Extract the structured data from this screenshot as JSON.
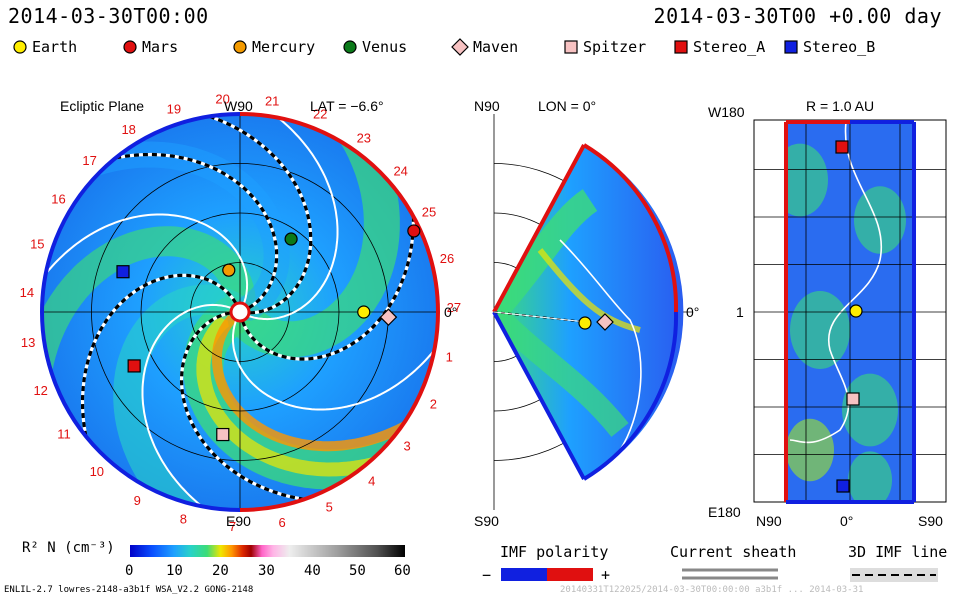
{
  "header": {
    "date_left": "2014-03-30T00:00",
    "date_right": "2014-03-30T00 +0.00 day"
  },
  "legend": [
    {
      "name": "Earth",
      "shape": "circle",
      "color": "#ffee00"
    },
    {
      "name": "Mars",
      "shape": "circle",
      "color": "#e01010"
    },
    {
      "name": "Mercury",
      "shape": "circle",
      "color": "#f39a00"
    },
    {
      "name": "Venus",
      "shape": "circle",
      "color": "#0b7a1a"
    },
    {
      "name": "Maven",
      "shape": "diamond",
      "color": "#f7c2c2"
    },
    {
      "name": "Spitzer",
      "shape": "square",
      "color": "#f7c2c2"
    },
    {
      "name": "Stereo_A",
      "shape": "square",
      "color": "#e01010"
    },
    {
      "name": "Stereo_B",
      "shape": "square",
      "color": "#1020e0"
    }
  ],
  "ecliptic": {
    "title": "Ecliptic Plane",
    "top_label": "W90",
    "bottom_label": "E90",
    "lat_label": "LAT = −6.6°",
    "right_label": "0°",
    "carrington_labels": [
      "1",
      "2",
      "3",
      "4",
      "5",
      "6",
      "7",
      "8",
      "9",
      "10",
      "11",
      "12",
      "13",
      "14",
      "15",
      "16",
      "17",
      "18",
      "19",
      "20",
      "21",
      "22",
      "23",
      "24",
      "25",
      "26",
      "27"
    ]
  },
  "meridional": {
    "top_label": "N90",
    "bottom_label": "S90",
    "lon_label": "LON = 0°",
    "right_label": "0°"
  },
  "radial": {
    "title": "R = 1.0 AU",
    "top_left": "W180",
    "mid_left": "1",
    "bottom_left": "E180",
    "x_labels": [
      "N90",
      "0°",
      "S90"
    ]
  },
  "colorbar": {
    "label": "R² N (cm⁻³)",
    "ticks": [
      "0",
      "10",
      "20",
      "30",
      "40",
      "50",
      "60"
    ]
  },
  "imf": {
    "label": "IMF polarity",
    "minus": "−",
    "plus": "+"
  },
  "sheath": {
    "label": "Current sheath"
  },
  "imf3d": {
    "label": "3D IMF line"
  },
  "footer": {
    "left": "ENLIL-2.7 lowres-2148-a3b1f WSA_V2.2 GONG-2148",
    "right": "20140331T122025/2014-03-30T00:00:00 a3b1f ... 2014-03-31"
  },
  "chart_data": {
    "type": "heatmap",
    "quantity": "R² N (cm⁻³)",
    "scale_range": [
      0,
      60
    ],
    "colormap": [
      "#0000c8",
      "#0a4fff",
      "#1ea0ff",
      "#28d2c8",
      "#3cdc78",
      "#a0e628",
      "#f0e600",
      "#ff9600",
      "#dc2800",
      "#a00000",
      "#ff64c8",
      "#ffb4e6",
      "#dcdcdc",
      "#a0a0a0",
      "#646464",
      "#282828",
      "#000000"
    ],
    "bodies": [
      {
        "name": "Earth",
        "r_au": 1.0,
        "lon_deg": 0
      },
      {
        "name": "Mars",
        "r_au": 1.55,
        "lon_deg": 25
      },
      {
        "name": "Mercury",
        "r_au": 0.35,
        "lon_deg": 105
      },
      {
        "name": "Venus",
        "r_au": 0.72,
        "lon_deg": 55
      },
      {
        "name": "Maven",
        "r_au": 1.2,
        "lon_deg": -2
      },
      {
        "name": "Spitzer",
        "r_au": 1.0,
        "lon_deg": -98
      },
      {
        "name": "Stereo_A",
        "r_au": 0.96,
        "lon_deg": -153
      },
      {
        "name": "Stereo_B",
        "r_au": 1.0,
        "lon_deg": 161
      }
    ]
  }
}
